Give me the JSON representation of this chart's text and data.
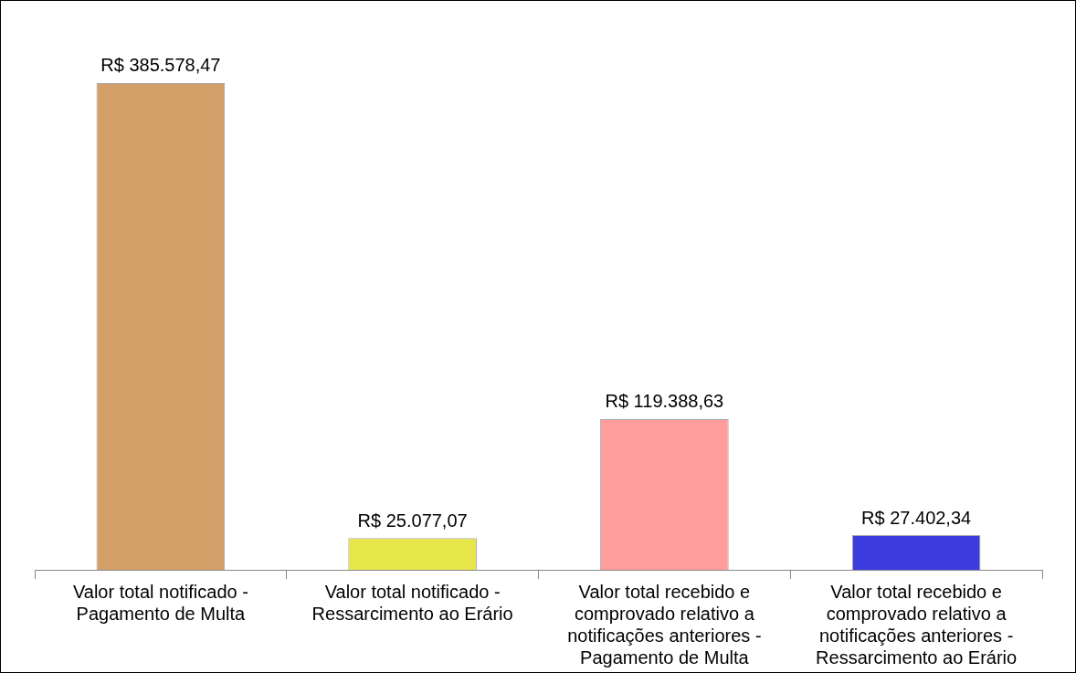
{
  "chart_data": {
    "type": "bar",
    "categories": [
      "Valor total notificado - Pagamento de Multa",
      "Valor total notificado - Ressarcimento ao Erário",
      "Valor total recebido e comprovado relativo a notificações anteriores - Pagamento de Multa",
      "Valor total recebido e comprovado relativo a notificações anteriores - Ressarcimento ao Erário"
    ],
    "values": [
      385578.47,
      25077.07,
      119388.63,
      27402.34
    ],
    "colors": [
      "#d4a06a",
      "#e6e64a",
      "#ff9c9c",
      "#3c3cdc"
    ],
    "value_labels": [
      "R$ 385.578,47",
      "R$ 25.077,07",
      "R$ 119.388,63",
      "R$ 27.402,34"
    ],
    "tick_labels": "x",
    "grid": false,
    "legend": false
  }
}
